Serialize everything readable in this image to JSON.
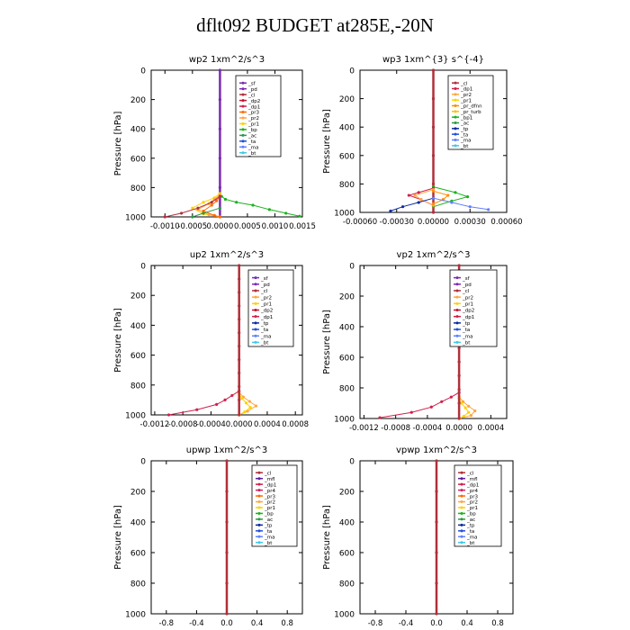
{
  "title": "dflt092  BUDGET at285E,-20N",
  "colors": {
    "series": {
      "sf": "#7a2ab5",
      "pd": "#7a2ab5",
      "cl": "#b0303a",
      "dp2": "#c8102e",
      "dp1": "#d0204a",
      "pr3": "#ff6a00",
      "pr2": "#ffa640",
      "pr1": "#ffd000",
      "bp": "#19b319",
      "ac": "#2a9a45",
      "ta": "#2050d8",
      "ma": "#6080ff",
      "bt": "#40c8e8",
      "tp": "#0a2aa0",
      "mfl": "#5a1d9a",
      "pr4": "#d02060",
      "pr_dfnn": "#ff8c00",
      "pr_turb": "#ffc000"
    }
  },
  "chart_data": [
    {
      "id": "wp2",
      "type": "line",
      "title": "wp2  1xm^2/s^3",
      "ylabel": "Pressure [hPa]",
      "ylim": [
        1000,
        0
      ],
      "xlim": [
        -0.00125,
        0.0015
      ],
      "xticks": [
        "-0.0010",
        "-0.0005",
        "0.0000",
        "0.0005",
        "0.0010",
        "0.0015"
      ],
      "xtick_values": [
        -0.001,
        -0.0005,
        0,
        0.0005,
        0.001,
        0.0015
      ],
      "yticks": [
        "0",
        "200",
        "400",
        "600",
        "800",
        "1000"
      ],
      "ytick_values": [
        0,
        200,
        400,
        600,
        800,
        1000
      ],
      "legend": [
        "_sf",
        "_pd",
        "_cl",
        "_dp2",
        "_dp1",
        "_pr3",
        "_pr2",
        "_pr1",
        "_bp",
        "_ac",
        "_ta",
        "_ma",
        "_bt"
      ],
      "series": [
        {
          "key": "sf",
          "x": [
            0,
            0,
            0,
            0,
            0,
            0
          ],
          "y": [
            0,
            200,
            400,
            600,
            800,
            1000
          ]
        },
        {
          "key": "bp",
          "x": [
            0,
            3e-05,
            0.0001,
            0.0003,
            0.0006,
            0.0009,
            0.0012,
            0.00145
          ],
          "y": [
            840,
            860,
            880,
            900,
            920,
            950,
            975,
            995
          ]
        },
        {
          "key": "pr1",
          "x": [
            0,
            -0.0001,
            -0.0003,
            -0.0005,
            -0.0003,
            0
          ],
          "y": [
            840,
            870,
            900,
            940,
            980,
            1000
          ]
        },
        {
          "key": "pr2",
          "x": [
            0,
            -0.0001,
            -0.0002,
            -0.0004,
            -0.0002,
            0
          ],
          "y": [
            850,
            880,
            910,
            950,
            985,
            1000
          ]
        },
        {
          "key": "pr3",
          "x": [
            0,
            -6e-05,
            -0.00015,
            -0.0003,
            -0.0001,
            0
          ],
          "y": [
            860,
            890,
            920,
            960,
            990,
            1000
          ]
        },
        {
          "key": "cl",
          "x": [
            0,
            -0.00015,
            -0.0004,
            -0.0007,
            -0.001
          ],
          "y": [
            860,
            900,
            940,
            975,
            1000
          ]
        },
        {
          "key": "ac",
          "x": [
            0,
            -0.0003,
            -0.0005
          ],
          "y": [
            940,
            975,
            1000
          ]
        }
      ]
    },
    {
      "id": "wp3",
      "type": "line",
      "title": "wp3  1xm^{3} s^{-4}",
      "ylabel": "Pressure [hPa]",
      "ylim": [
        1000,
        0
      ],
      "xlim": [
        -0.0006,
        0.0006
      ],
      "xticks": [
        "-0.00060",
        "-0.00030",
        "0.00000",
        "0.00030",
        "0.00060"
      ],
      "xtick_values": [
        -0.0006,
        -0.0003,
        0,
        0.0003,
        0.0006
      ],
      "yticks": [
        "0",
        "200",
        "400",
        "600",
        "800",
        "1000"
      ],
      "ytick_values": [
        0,
        200,
        400,
        600,
        800,
        1000
      ],
      "legend": [
        "_cl",
        "_dp1",
        "_pr2",
        "_pr1",
        "_pr_dfnn",
        "_pr_turb",
        "_bp1",
        "_ac",
        "_tp",
        "_ta",
        "_ma",
        "_bt"
      ],
      "series": [
        {
          "key": "cl",
          "x": [
            0,
            0,
            0,
            0,
            0,
            0
          ],
          "y": [
            0,
            200,
            400,
            600,
            800,
            1000
          ]
        },
        {
          "key": "bp",
          "x": [
            0,
            0.00018,
            0.00028,
            0.00015,
            0
          ],
          "y": [
            820,
            860,
            890,
            920,
            960
          ]
        },
        {
          "key": "dp1",
          "x": [
            0,
            -0.00012,
            -0.0002,
            -0.0001,
            0
          ],
          "y": [
            830,
            860,
            880,
            910,
            950
          ]
        },
        {
          "key": "pr2",
          "x": [
            0,
            -0.00015,
            -0.0001,
            0
          ],
          "y": [
            840,
            880,
            910,
            950
          ]
        },
        {
          "key": "pr_dfnn",
          "x": [
            0,
            0.00012,
            8e-05,
            0
          ],
          "y": [
            850,
            880,
            910,
            940
          ]
        },
        {
          "key": "tp",
          "x": [
            0,
            -0.00012,
            -0.00025,
            -0.00035
          ],
          "y": [
            900,
            930,
            960,
            990
          ]
        },
        {
          "key": "ma",
          "x": [
            0,
            0.00015,
            0.0003,
            0.00045
          ],
          "y": [
            900,
            930,
            960,
            980
          ]
        }
      ]
    },
    {
      "id": "up2",
      "type": "line",
      "title": "up2  1xm^2/s^3",
      "ylabel": "Pressure [hPa]",
      "ylim": [
        1000,
        0
      ],
      "xlim": [
        -0.00125,
        0.0009
      ],
      "xticks": [
        "-0.0012",
        "-0.0008",
        "-0.0004",
        "0.0000",
        "0.0004",
        "0.0008"
      ],
      "xtick_values": [
        -0.0012,
        -0.0008,
        -0.0004,
        0,
        0.0004,
        0.0008
      ],
      "yticks": [
        "0",
        "200",
        "400",
        "600",
        "800",
        "1000"
      ],
      "ytick_values": [
        0,
        200,
        400,
        600,
        800,
        1000
      ],
      "legend": [
        "_sf",
        "_pd",
        "_cl",
        "_pr2",
        "_pr1",
        "_dp2",
        "_dp1",
        "_tp",
        "_ta",
        "_ma",
        "_bt"
      ],
      "series": [
        {
          "key": "pr2",
          "x": [
            0,
            6e-05,
            0.00015,
            0.00024,
            0.00012,
            0
          ],
          "y": [
            850,
            880,
            910,
            940,
            975,
            1000
          ]
        },
        {
          "key": "pr1",
          "x": [
            0,
            4e-05,
            0.0001,
            0.00016,
            8e-05,
            0
          ],
          "y": [
            860,
            890,
            920,
            950,
            980,
            1000
          ]
        },
        {
          "key": "dp1",
          "x": [
            0,
            -0.0001,
            -0.0002,
            -0.00032,
            -0.0006,
            -0.001
          ],
          "y": [
            840,
            870,
            900,
            930,
            965,
            1000
          ]
        },
        {
          "key": "cl",
          "x": [
            0,
            0,
            0,
            0,
            0,
            0,
            0,
            0,
            0,
            0,
            0,
            0
          ],
          "y": [
            0,
            90,
            180,
            270,
            360,
            450,
            540,
            630,
            720,
            810,
            900,
            1000
          ]
        }
      ]
    },
    {
      "id": "vp2",
      "type": "line",
      "title": "vp2  1xm^2/s^3",
      "ylabel": "Pressure [hPa]",
      "ylim": [
        1000,
        0
      ],
      "xlim": [
        -0.00125,
        0.0006
      ],
      "xticks": [
        "-0.0012",
        "-0.0008",
        "-0.0004",
        "0.0000",
        "0.0004"
      ],
      "xtick_values": [
        -0.0012,
        -0.0008,
        -0.0004,
        0,
        0.0004
      ],
      "yticks": [
        "0",
        "200",
        "400",
        "600",
        "800",
        "1000"
      ],
      "ytick_values": [
        0,
        200,
        400,
        600,
        800,
        1000
      ],
      "legend": [
        "_sf",
        "_pd",
        "_cl",
        "_pr2",
        "_pr1",
        "_dp2",
        "_dp1",
        "_tp",
        "_ta",
        "_ma",
        "_bt"
      ],
      "series": [
        {
          "key": "pr2",
          "x": [
            0,
            5e-05,
            0.00012,
            0.0002,
            0.00015,
            0
          ],
          "y": [
            860,
            890,
            920,
            950,
            980,
            1000
          ]
        },
        {
          "key": "pr1",
          "x": [
            0,
            3e-05,
            8e-05,
            0.00012,
            6e-05,
            0
          ],
          "y": [
            870,
            900,
            930,
            960,
            985,
            1000
          ]
        },
        {
          "key": "dp1",
          "x": [
            0,
            -0.0001,
            -0.00022,
            -0.00035,
            -0.0006,
            -0.001
          ],
          "y": [
            830,
            860,
            890,
            925,
            960,
            995
          ]
        },
        {
          "key": "cl",
          "x": [
            0,
            0,
            0,
            0,
            0,
            0,
            0,
            0,
            0,
            0,
            0,
            0
          ],
          "y": [
            0,
            90,
            180,
            270,
            360,
            450,
            540,
            630,
            720,
            810,
            900,
            1000
          ]
        }
      ]
    },
    {
      "id": "upwp",
      "type": "line",
      "title": "upwp  1xm^2/s^3",
      "ylabel": "Pressure [hPa]",
      "ylim": [
        1000,
        0
      ],
      "xlim": [
        -1,
        1
      ],
      "xticks": [
        "-0.8",
        "-0.4",
        "0.0",
        "0.4",
        "0.8"
      ],
      "xtick_values": [
        -0.8,
        -0.4,
        0,
        0.4,
        0.8
      ],
      "yticks": [
        "0",
        "200",
        "400",
        "600",
        "800",
        "1000"
      ],
      "ytick_values": [
        0,
        200,
        400,
        600,
        800,
        1000
      ],
      "legend": [
        "_cl",
        "_mfl",
        "_dp1",
        "_pr4",
        "_pr3",
        "_pr2",
        "_pr1",
        "_bp",
        "_ac",
        "_tp",
        "_ta",
        "_ma",
        "_bt"
      ],
      "series": [
        {
          "key": "cl",
          "x": [
            0,
            0,
            0,
            0,
            0,
            0
          ],
          "y": [
            0,
            200,
            400,
            600,
            800,
            1000
          ]
        }
      ]
    },
    {
      "id": "vpwp",
      "type": "line",
      "title": "vpwp  1xm^2/s^3",
      "ylabel": "Pressure [hPa]",
      "ylim": [
        1000,
        0
      ],
      "xlim": [
        -1,
        1
      ],
      "xticks": [
        "-0.8",
        "-0.4",
        "0.0",
        "0.4",
        "0.8"
      ],
      "xtick_values": [
        -0.8,
        -0.4,
        0,
        0.4,
        0.8
      ],
      "yticks": [
        "0",
        "200",
        "400",
        "600",
        "800",
        "1000"
      ],
      "ytick_values": [
        0,
        200,
        400,
        600,
        800,
        1000
      ],
      "legend": [
        "_cl",
        "_mfl",
        "_dp1",
        "_pr4",
        "_pr3",
        "_pr2",
        "_pr1",
        "_bp",
        "_ac",
        "_tp",
        "_ta",
        "_ma",
        "_bt"
      ],
      "series": [
        {
          "key": "cl",
          "x": [
            0,
            0,
            0,
            0,
            0,
            0
          ],
          "y": [
            0,
            200,
            400,
            600,
            800,
            1000
          ]
        }
      ]
    }
  ]
}
